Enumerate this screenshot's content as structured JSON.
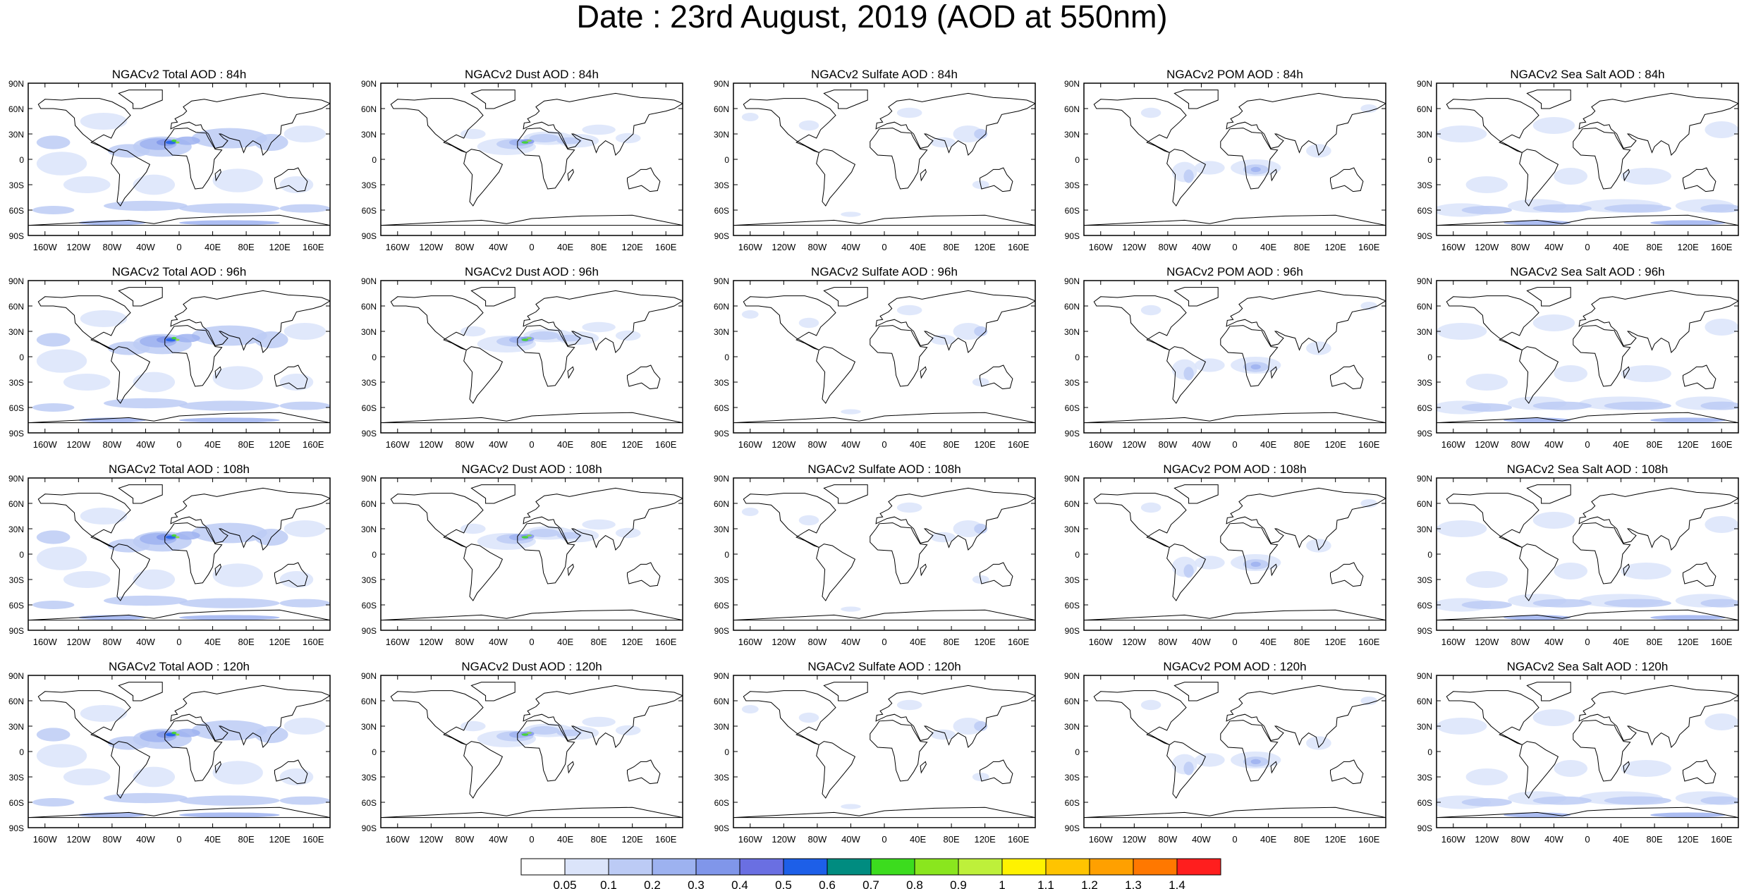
{
  "title": "Date : 23rd August, 2019 (AOD at 550nm)",
  "lat_tick_labels": [
    "90N",
    "60N",
    "30N",
    "0",
    "30S",
    "60S",
    "90S"
  ],
  "lon_tick_labels": [
    "160W",
    "120W",
    "80W",
    "40W",
    "0",
    "40E",
    "80E",
    "120E",
    "160E"
  ],
  "lat_ticks": [
    90,
    60,
    30,
    0,
    -30,
    -60,
    -90
  ],
  "lon_ticks": [
    -160,
    -120,
    -80,
    -40,
    0,
    40,
    80,
    120,
    160
  ],
  "panels": [
    [
      "NGACv2 Total AOD : 84h",
      "NGACv2 Dust AOD : 84h",
      "NGACv2 Sulfate AOD : 84h",
      "NGACv2 POM AOD : 84h",
      "NGACv2 Sea Salt AOD : 84h"
    ],
    [
      "NGACv2 Total AOD : 96h",
      "NGACv2 Dust AOD : 96h",
      "NGACv2 Sulfate AOD : 96h",
      "NGACv2 POM AOD : 96h",
      "NGACv2 Sea Salt AOD : 96h"
    ],
    [
      "NGACv2 Total AOD : 108h",
      "NGACv2 Dust AOD : 108h",
      "NGACv2 Sulfate AOD : 108h",
      "NGACv2 POM AOD : 108h",
      "NGACv2 Sea Salt AOD : 108h"
    ],
    [
      "NGACv2 Total AOD : 120h",
      "NGACv2 Dust AOD : 120h",
      "NGACv2 Sulfate AOD : 120h",
      "NGACv2 POM AOD : 120h",
      "NGACv2 Sea Salt  AOD : 120h"
    ]
  ],
  "colorbar": {
    "labels": [
      "0.05",
      "0.1",
      "0.2",
      "0.3",
      "0.4",
      "0.5",
      "0.6",
      "0.7",
      "0.8",
      "0.9",
      "1",
      "1.1",
      "1.2",
      "1.3",
      "1.4"
    ],
    "colors": [
      "#ffffff",
      "#dbe4fa",
      "#bccbf5",
      "#9db2f0",
      "#8096ea",
      "#6a6fe2",
      "#1d5fe8",
      "#008c80",
      "#3cdc1e",
      "#8ae61e",
      "#bef03a",
      "#fff200",
      "#ffc400",
      "#ffa000",
      "#ff7800",
      "#ff1e1e"
    ]
  }
}
